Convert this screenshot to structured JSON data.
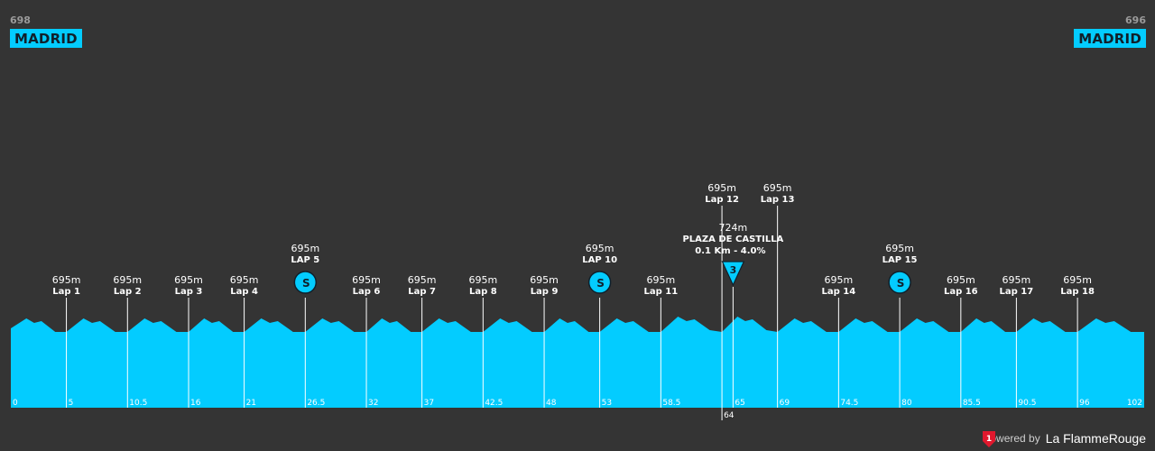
{
  "start": {
    "alt": "698",
    "name": "MADRID"
  },
  "finish": {
    "alt": "696",
    "name": "MADRID"
  },
  "footer": {
    "powered": "Powered by",
    "brand": "La FlammeRouge",
    "logo_icon": "flamme-rouge-icon"
  },
  "colors": {
    "background": "#343434",
    "profile": "#03ccff",
    "sprint": "#03ccff",
    "text": "#ffffff"
  },
  "chart_data": {
    "type": "area",
    "title": "",
    "xlabel": "",
    "ylabel": "",
    "xlim": [
      0,
      102
    ],
    "x_ticks": [
      "0",
      "5",
      "10.5",
      "16",
      "21",
      "26.5",
      "32",
      "37",
      "42.5",
      "48",
      "53",
      "58.5",
      "64",
      "65",
      "69",
      "74.5",
      "80",
      "85.5",
      "90.5",
      "96",
      "102"
    ],
    "laps": [
      {
        "km": 5,
        "alt": "695m",
        "label": "Lap 1"
      },
      {
        "km": 10.5,
        "alt": "695m",
        "label": "Lap 2"
      },
      {
        "km": 16,
        "alt": "695m",
        "label": "Lap 3"
      },
      {
        "km": 21,
        "alt": "695m",
        "label": "Lap 4"
      },
      {
        "km": 26.5,
        "alt": "695m",
        "label": "LAP 5",
        "sprint": true
      },
      {
        "km": 32,
        "alt": "695m",
        "label": "Lap 6"
      },
      {
        "km": 37,
        "alt": "695m",
        "label": "Lap 7"
      },
      {
        "km": 42.5,
        "alt": "695m",
        "label": "Lap 8"
      },
      {
        "km": 48,
        "alt": "695m",
        "label": "Lap 9"
      },
      {
        "km": 53,
        "alt": "695m",
        "label": "LAP 10",
        "sprint": true
      },
      {
        "km": 58.5,
        "alt": "695m",
        "label": "Lap 11"
      },
      {
        "km": 64,
        "alt": "695m",
        "label": "Lap 12"
      },
      {
        "km": 69,
        "alt": "695m",
        "label": "Lap 13"
      },
      {
        "km": 74.5,
        "alt": "695m",
        "label": "Lap 14"
      },
      {
        "km": 80,
        "alt": "695m",
        "label": "LAP 15",
        "sprint": true
      },
      {
        "km": 85.5,
        "alt": "695m",
        "label": "Lap 16"
      },
      {
        "km": 90.5,
        "alt": "695m",
        "label": "Lap 17"
      },
      {
        "km": 96,
        "alt": "695m",
        "label": "Lap 18"
      }
    ],
    "climb": {
      "km": 65,
      "alt": "724m",
      "name": "PLAZA DE CASTILLA",
      "detail": "0.1 Km - 4.0%",
      "category": "3"
    },
    "sprint_icon_label": "S"
  }
}
